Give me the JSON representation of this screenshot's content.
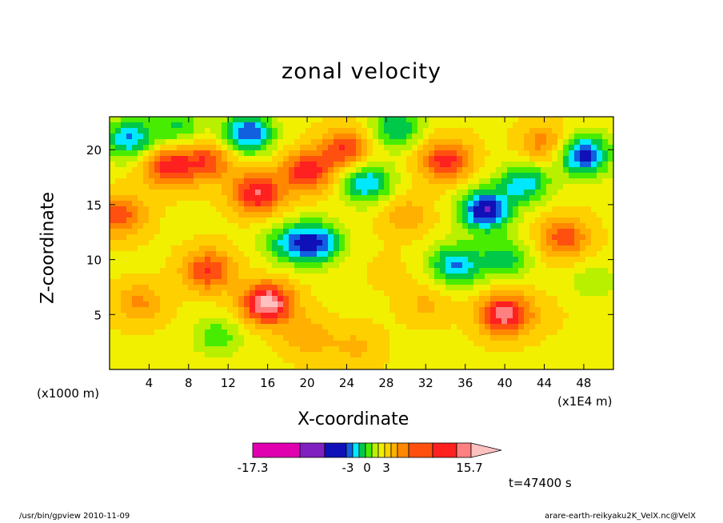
{
  "chart_data": {
    "type": "heatmap",
    "title": "zonal velocity",
    "xlabel": "X-coordinate",
    "ylabel": "Z-coordinate",
    "x_unit_left": "(x1000 m)",
    "x_unit_right": "(x1E4 m)",
    "xlim": [
      0,
      51
    ],
    "ylim": [
      0,
      23
    ],
    "x_ticks": [
      4,
      8,
      12,
      16,
      20,
      24,
      28,
      32,
      36,
      40,
      44,
      48
    ],
    "y_ticks": [
      5,
      10,
      15,
      20
    ],
    "colorbar": {
      "colors": [
        "#e000b0",
        "#8020c0",
        "#1010b8",
        "#1060e0",
        "#00e8ff",
        "#00c848",
        "#48ec00",
        "#b8f000",
        "#f0f000",
        "#ffd000",
        "#ffb000",
        "#ff8800",
        "#ff5010",
        "#ff2020",
        "#ff8080",
        "#ffc0c0"
      ],
      "tick_labels": [
        "-17.3",
        "-3",
        "0",
        "3",
        "15.7"
      ]
    },
    "field_blobs": [
      {
        "x": 2,
        "z": 21,
        "v": -10
      },
      {
        "x": 6,
        "z": 18.5,
        "v": 10
      },
      {
        "x": 10,
        "z": 19,
        "v": 8
      },
      {
        "x": 7,
        "z": 22,
        "v": -6
      },
      {
        "x": 14,
        "z": 21.5,
        "v": -12
      },
      {
        "x": 15,
        "z": 16,
        "v": 11
      },
      {
        "x": 20,
        "z": 18,
        "v": 10
      },
      {
        "x": 21,
        "z": 11.5,
        "v": -11
      },
      {
        "x": 18,
        "z": 11.5,
        "v": -7
      },
      {
        "x": 1,
        "z": 14,
        "v": 8
      },
      {
        "x": 10,
        "z": 9,
        "v": 9
      },
      {
        "x": 16,
        "z": 6,
        "v": 14
      },
      {
        "x": 11,
        "z": 3,
        "v": -5
      },
      {
        "x": 24,
        "z": 20,
        "v": 9
      },
      {
        "x": 26,
        "z": 17,
        "v": -10
      },
      {
        "x": 29,
        "z": 22,
        "v": -8
      },
      {
        "x": 30,
        "z": 14,
        "v": 4
      },
      {
        "x": 34,
        "z": 19,
        "v": 10
      },
      {
        "x": 38,
        "z": 14.5,
        "v": -14
      },
      {
        "x": 42,
        "z": 17,
        "v": -9
      },
      {
        "x": 35,
        "z": 9.5,
        "v": -10
      },
      {
        "x": 40,
        "z": 10,
        "v": -7
      },
      {
        "x": 46,
        "z": 12,
        "v": 8
      },
      {
        "x": 48,
        "z": 19.5,
        "v": -13
      },
      {
        "x": 44,
        "z": 20.5,
        "v": 6
      },
      {
        "x": 40,
        "z": 5,
        "v": 12
      },
      {
        "x": 32,
        "z": 6,
        "v": 3
      },
      {
        "x": 44,
        "z": 5,
        "v": 1
      },
      {
        "x": 49,
        "z": 8,
        "v": -3
      },
      {
        "x": 25,
        "z": 2,
        "v": 3
      },
      {
        "x": 3,
        "z": 6,
        "v": 5
      },
      {
        "x": 20,
        "z": 3,
        "v": 4
      },
      {
        "x": 28,
        "z": 9,
        "v": 1
      }
    ],
    "field_background": 0.8
  },
  "annotations": {
    "time": "t=47400 s",
    "footer_left": "/usr/bin/gpview   2010-11-09",
    "footer_right": "arare-earth-reikyaku2K_VelX.nc@VelX"
  }
}
